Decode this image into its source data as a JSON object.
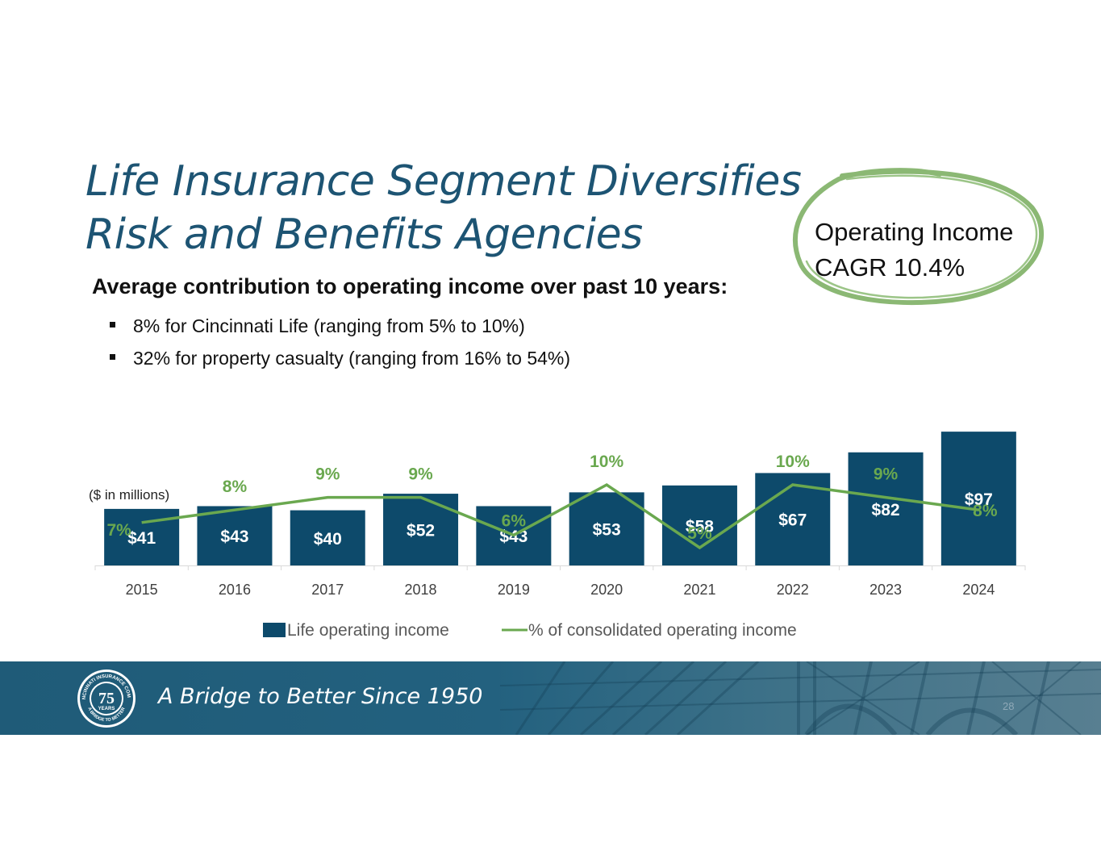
{
  "title": {
    "line1": "Life Insurance Segment Diversifies",
    "line2": "Risk and Benefits Agencies"
  },
  "callout": {
    "line1": "Operating Income",
    "line2": "CAGR 10.4%"
  },
  "subhead": "Average contribution to operating income over past 10 years:",
  "bullets": [
    "8% for Cincinnati Life (ranging from 5% to 10%)",
    "32% for property casualty (ranging from 16% to 54%)"
  ],
  "chart_data": {
    "type": "bar",
    "title": "",
    "units_note": "($ in millions)",
    "categories": [
      "2015",
      "2016",
      "2017",
      "2018",
      "2019",
      "2020",
      "2021",
      "2022",
      "2023",
      "2024"
    ],
    "series": [
      {
        "name": "Life operating income",
        "kind": "bar",
        "values": [
          41,
          43,
          40,
          52,
          43,
          53,
          58,
          67,
          82,
          97
        ],
        "labels": [
          "$41",
          "$43",
          "$40",
          "$52",
          "$43",
          "$53",
          "$58",
          "$67",
          "$82",
          "$97"
        ]
      },
      {
        "name": "% of consolidated operating income",
        "kind": "line",
        "values": [
          7,
          8,
          9,
          9,
          6,
          10,
          5,
          10,
          9,
          8
        ],
        "labels": [
          "7%",
          "8%",
          "9%",
          "9%",
          "6%",
          "10%",
          "5%",
          "10%",
          "9%",
          "8%"
        ]
      }
    ],
    "legend_position": "bottom",
    "colors": {
      "bar": "#0d4a6b",
      "line": "#6aa84f",
      "bar_label": "#ffffff",
      "line_label": "#6aa84f"
    }
  },
  "footer": {
    "tagline": "A Bridge to Better Since 1950",
    "page_number": "28",
    "logo": {
      "number": "75",
      "word": "YEARS",
      "ring_text": "THE CINCINNATI INSURANCE COMPANIES",
      "bottom_text": "A BRIDGE TO BETTER"
    }
  }
}
